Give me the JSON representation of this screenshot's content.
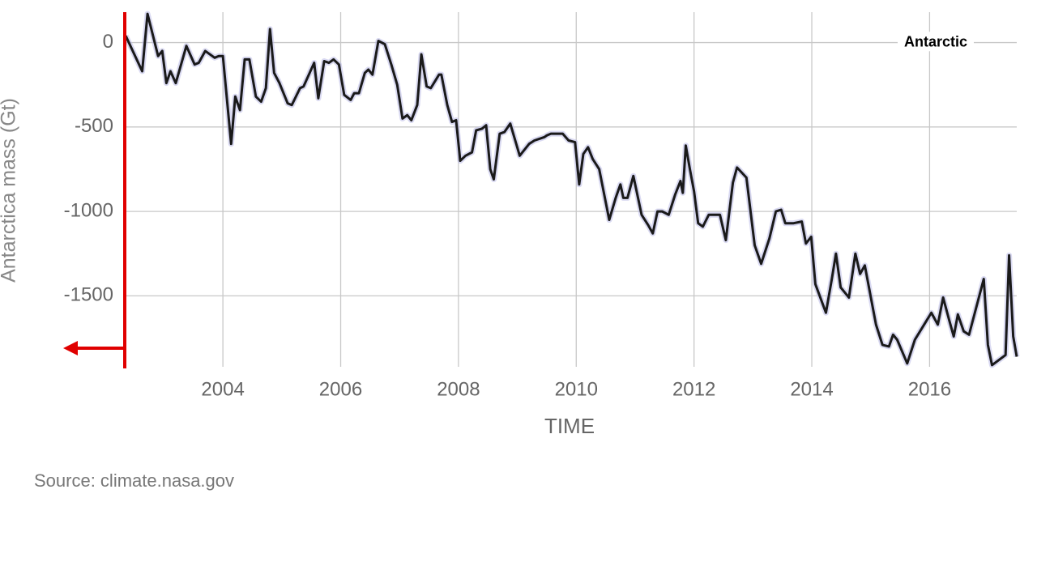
{
  "chart_data": {
    "type": "line",
    "y_axis_label": "Antarctica mass (Gt)",
    "x_axis_label": "TIME",
    "source": "Source: climate.nasa.gov",
    "legend": "top-right",
    "grid": true,
    "xlim": [
      2002.32,
      2017.48
    ],
    "ylim": [
      -1920,
      180
    ],
    "xticks": [
      2004,
      2006,
      2008,
      2010,
      2012,
      2014,
      2016
    ],
    "yticks": [
      -1500,
      -1000,
      -500,
      0
    ],
    "x": [
      2002.35,
      2002.63,
      2002.72,
      2002.9,
      2002.97,
      2003.04,
      2003.11,
      2003.2,
      2003.38,
      2003.52,
      2003.59,
      2003.7,
      2003.86,
      2003.93,
      2004.0,
      2004.14,
      2004.21,
      2004.29,
      2004.37,
      2004.45,
      2004.56,
      2004.65,
      2004.73,
      2004.8,
      2004.87,
      2004.96,
      2005.1,
      2005.17,
      2005.31,
      2005.37,
      2005.55,
      2005.62,
      2005.72,
      2005.8,
      2005.88,
      2005.97,
      2006.06,
      2006.17,
      2006.23,
      2006.31,
      2006.41,
      2006.47,
      2006.54,
      2006.64,
      2006.75,
      2006.86,
      2006.96,
      2007.05,
      2007.13,
      2007.2,
      2007.3,
      2007.37,
      2007.46,
      2007.53,
      2007.67,
      2007.71,
      2007.81,
      2007.89,
      2007.96,
      2008.03,
      2008.12,
      2008.23,
      2008.3,
      2008.4,
      2008.47,
      2008.54,
      2008.6,
      2008.7,
      2008.78,
      2008.88,
      2009.04,
      2009.2,
      2009.29,
      2009.46,
      2009.5,
      2009.57,
      2009.77,
      2009.87,
      2009.98,
      2010.05,
      2010.12,
      2010.2,
      2010.28,
      2010.39,
      2010.56,
      2010.67,
      2010.75,
      2010.8,
      2010.87,
      2010.97,
      2011.11,
      2011.22,
      2011.3,
      2011.38,
      2011.46,
      2011.57,
      2011.68,
      2011.77,
      2011.81,
      2011.86,
      2011.93,
      2012.0,
      2012.07,
      2012.15,
      2012.25,
      2012.36,
      2012.44,
      2012.54,
      2012.66,
      2012.73,
      2012.89,
      2013.03,
      2013.14,
      2013.28,
      2013.39,
      2013.48,
      2013.55,
      2013.69,
      2013.83,
      2013.9,
      2013.99,
      2014.06,
      2014.24,
      2014.34,
      2014.41,
      2014.49,
      2014.63,
      2014.74,
      2014.82,
      2014.9,
      2015.09,
      2015.2,
      2015.31,
      2015.38,
      2015.45,
      2015.62,
      2015.75,
      2016.03,
      2016.14,
      2016.23,
      2016.33,
      2016.41,
      2016.48,
      2016.58,
      2016.67,
      2016.92,
      2016.99,
      2017.06,
      2017.29,
      2017.35,
      2017.42,
      2017.48
    ],
    "series": [
      {
        "name": "Antarctic",
        "color": "#1a1a1a",
        "values": [
          40,
          -170,
          170,
          -80,
          -50,
          -240,
          -170,
          -240,
          -20,
          -130,
          -120,
          -50,
          -90,
          -80,
          -80,
          -600,
          -320,
          -400,
          -100,
          -100,
          -320,
          -350,
          -270,
          80,
          -180,
          -240,
          -360,
          -370,
          -270,
          -260,
          -120,
          -330,
          -110,
          -120,
          -100,
          -130,
          -310,
          -340,
          -300,
          -300,
          -180,
          -160,
          -190,
          10,
          -10,
          -130,
          -250,
          -450,
          -430,
          -460,
          -370,
          -70,
          -260,
          -270,
          -190,
          -190,
          -370,
          -470,
          -460,
          -700,
          -670,
          -650,
          -520,
          -510,
          -490,
          -750,
          -810,
          -540,
          -530,
          -480,
          -670,
          -600,
          -580,
          -560,
          -550,
          -540,
          -540,
          -580,
          -590,
          -840,
          -660,
          -620,
          -690,
          -750,
          -1050,
          -920,
          -840,
          -920,
          -920,
          -790,
          -1020,
          -1080,
          -1130,
          -1000,
          -1000,
          -1020,
          -900,
          -820,
          -890,
          -610,
          -750,
          -880,
          -1070,
          -1090,
          -1020,
          -1020,
          -1020,
          -1170,
          -830,
          -740,
          -800,
          -1200,
          -1310,
          -1160,
          -1000,
          -990,
          -1070,
          -1070,
          -1060,
          -1190,
          -1150,
          -1430,
          -1600,
          -1400,
          -1250,
          -1450,
          -1510,
          -1250,
          -1370,
          -1320,
          -1670,
          -1790,
          -1800,
          -1730,
          -1760,
          -1900,
          -1760,
          -1600,
          -1670,
          -1510,
          -1640,
          -1740,
          -1610,
          -1710,
          -1730,
          -1400,
          -1790,
          -1910,
          -1850,
          -1260,
          -1740,
          -1860
        ]
      }
    ]
  }
}
